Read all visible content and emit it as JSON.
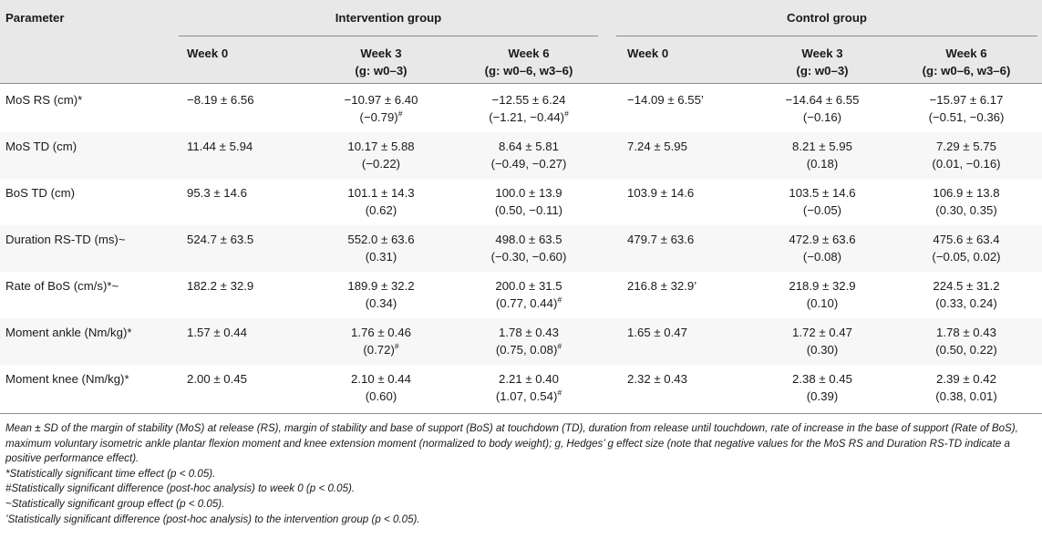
{
  "header": {
    "parameter": "Parameter",
    "intervention_group": "Intervention group",
    "control_group": "Control group",
    "columns": [
      {
        "line1": "Week 0",
        "line2": ""
      },
      {
        "line1": "Week 3",
        "line2": "(g: w0–3)"
      },
      {
        "line1": "Week 6",
        "line2": "(g: w0–6, w3–6)"
      },
      {
        "line1": "Week 0",
        "line2": ""
      },
      {
        "line1": "Week 3",
        "line2": "(g: w0–3)"
      },
      {
        "line1": "Week 6",
        "line2": "(g: w0–6, w3–6)"
      }
    ]
  },
  "rows": [
    {
      "param": "MoS RS (cm)*",
      "cells": [
        {
          "main": "−8.19 ± 6.56",
          "g": ""
        },
        {
          "main": "−10.97 ± 6.40",
          "g": "(−0.79)#"
        },
        {
          "main": "−12.55 ± 6.24",
          "g": "(−1.21, −0.44)#"
        },
        {
          "main": "−14.09 ± 6.55’",
          "g": ""
        },
        {
          "main": "−14.64 ± 6.55",
          "g": "(−0.16)"
        },
        {
          "main": "−15.97 ± 6.17",
          "g": "(−0.51, −0.36)"
        }
      ]
    },
    {
      "param": "MoS TD (cm)",
      "cells": [
        {
          "main": "11.44 ± 5.94",
          "g": ""
        },
        {
          "main": "10.17 ± 5.88",
          "g": "(−0.22)"
        },
        {
          "main": "8.64 ± 5.81",
          "g": "(−0.49, −0.27)"
        },
        {
          "main": "7.24 ± 5.95",
          "g": ""
        },
        {
          "main": "8.21 ± 5.95",
          "g": "(0.18)"
        },
        {
          "main": "7.29 ± 5.75",
          "g": "(0.01, −0.16)"
        }
      ]
    },
    {
      "param": "BoS TD (cm)",
      "cells": [
        {
          "main": "95.3 ± 14.6",
          "g": ""
        },
        {
          "main": "101.1 ± 14.3",
          "g": "(0.62)"
        },
        {
          "main": "100.0 ± 13.9",
          "g": "(0.50, −0.11)"
        },
        {
          "main": "103.9 ± 14.6",
          "g": ""
        },
        {
          "main": "103.5 ± 14.6",
          "g": "(−0.05)"
        },
        {
          "main": "106.9 ± 13.8",
          "g": "(0.30, 0.35)"
        }
      ]
    },
    {
      "param": "Duration RS-TD (ms)~",
      "cells": [
        {
          "main": "524.7 ± 63.5",
          "g": ""
        },
        {
          "main": "552.0 ± 63.6",
          "g": "(0.31)"
        },
        {
          "main": "498.0 ± 63.5",
          "g": "(−0.30, −0.60)"
        },
        {
          "main": "479.7 ± 63.6",
          "g": ""
        },
        {
          "main": "472.9 ± 63.6",
          "g": "(−0.08)"
        },
        {
          "main": "475.6 ± 63.4",
          "g": "(−0.05, 0.02)"
        }
      ]
    },
    {
      "param": "Rate of BoS (cm/s)*~",
      "cells": [
        {
          "main": "182.2 ± 32.9",
          "g": ""
        },
        {
          "main": "189.9 ± 32.2",
          "g": "(0.34)"
        },
        {
          "main": "200.0 ± 31.5",
          "g": "(0.77, 0.44)#"
        },
        {
          "main": "216.8 ± 32.9’",
          "g": ""
        },
        {
          "main": "218.9 ± 32.9",
          "g": "(0.10)"
        },
        {
          "main": "224.5 ± 31.2",
          "g": "(0.33, 0.24)"
        }
      ]
    },
    {
      "param": "Moment ankle (Nm/kg)*",
      "cells": [
        {
          "main": "1.57 ± 0.44",
          "g": ""
        },
        {
          "main": "1.76 ± 0.46",
          "g": "(0.72)#"
        },
        {
          "main": "1.78 ± 0.43",
          "g": "(0.75, 0.08)#"
        },
        {
          "main": "1.65 ± 0.47",
          "g": ""
        },
        {
          "main": "1.72 ± 0.47",
          "g": "(0.30)"
        },
        {
          "main": "1.78 ± 0.43",
          "g": "(0.50, 0.22)"
        }
      ]
    },
    {
      "param": "Moment knee (Nm/kg)*",
      "cells": [
        {
          "main": "2.00 ± 0.45",
          "g": ""
        },
        {
          "main": "2.10 ± 0.44",
          "g": "(0.60)"
        },
        {
          "main": "2.21 ± 0.40",
          "g": "(1.07, 0.54)#"
        },
        {
          "main": "2.32 ± 0.43",
          "g": ""
        },
        {
          "main": "2.38 ± 0.45",
          "g": "(0.39)"
        },
        {
          "main": "2.39 ± 0.42",
          "g": "(0.38, 0.01)"
        }
      ]
    }
  ],
  "notes": [
    "Mean ± SD of the margin of stability (MoS) at release (RS), margin of stability and base of support (BoS) at touchdown (TD), duration from release until touchdown, rate of increase in the base of support (Rate of BoS), maximum voluntary isometric ankle plantar flexion moment and knee extension moment (normalized to body weight); g, Hedges’ g effect size (note that negative values for the MoS RS and Duration RS-TD indicate a positive performance effect).",
    "*Statistically significant time effect (p < 0.05).",
    "#Statistically significant difference (post-hoc analysis) to week 0 (p < 0.05).",
    "~Statistically significant group effect (p < 0.05).",
    "’Statistically significant difference (post-hoc analysis) to the intervention group (p < 0.05)."
  ]
}
